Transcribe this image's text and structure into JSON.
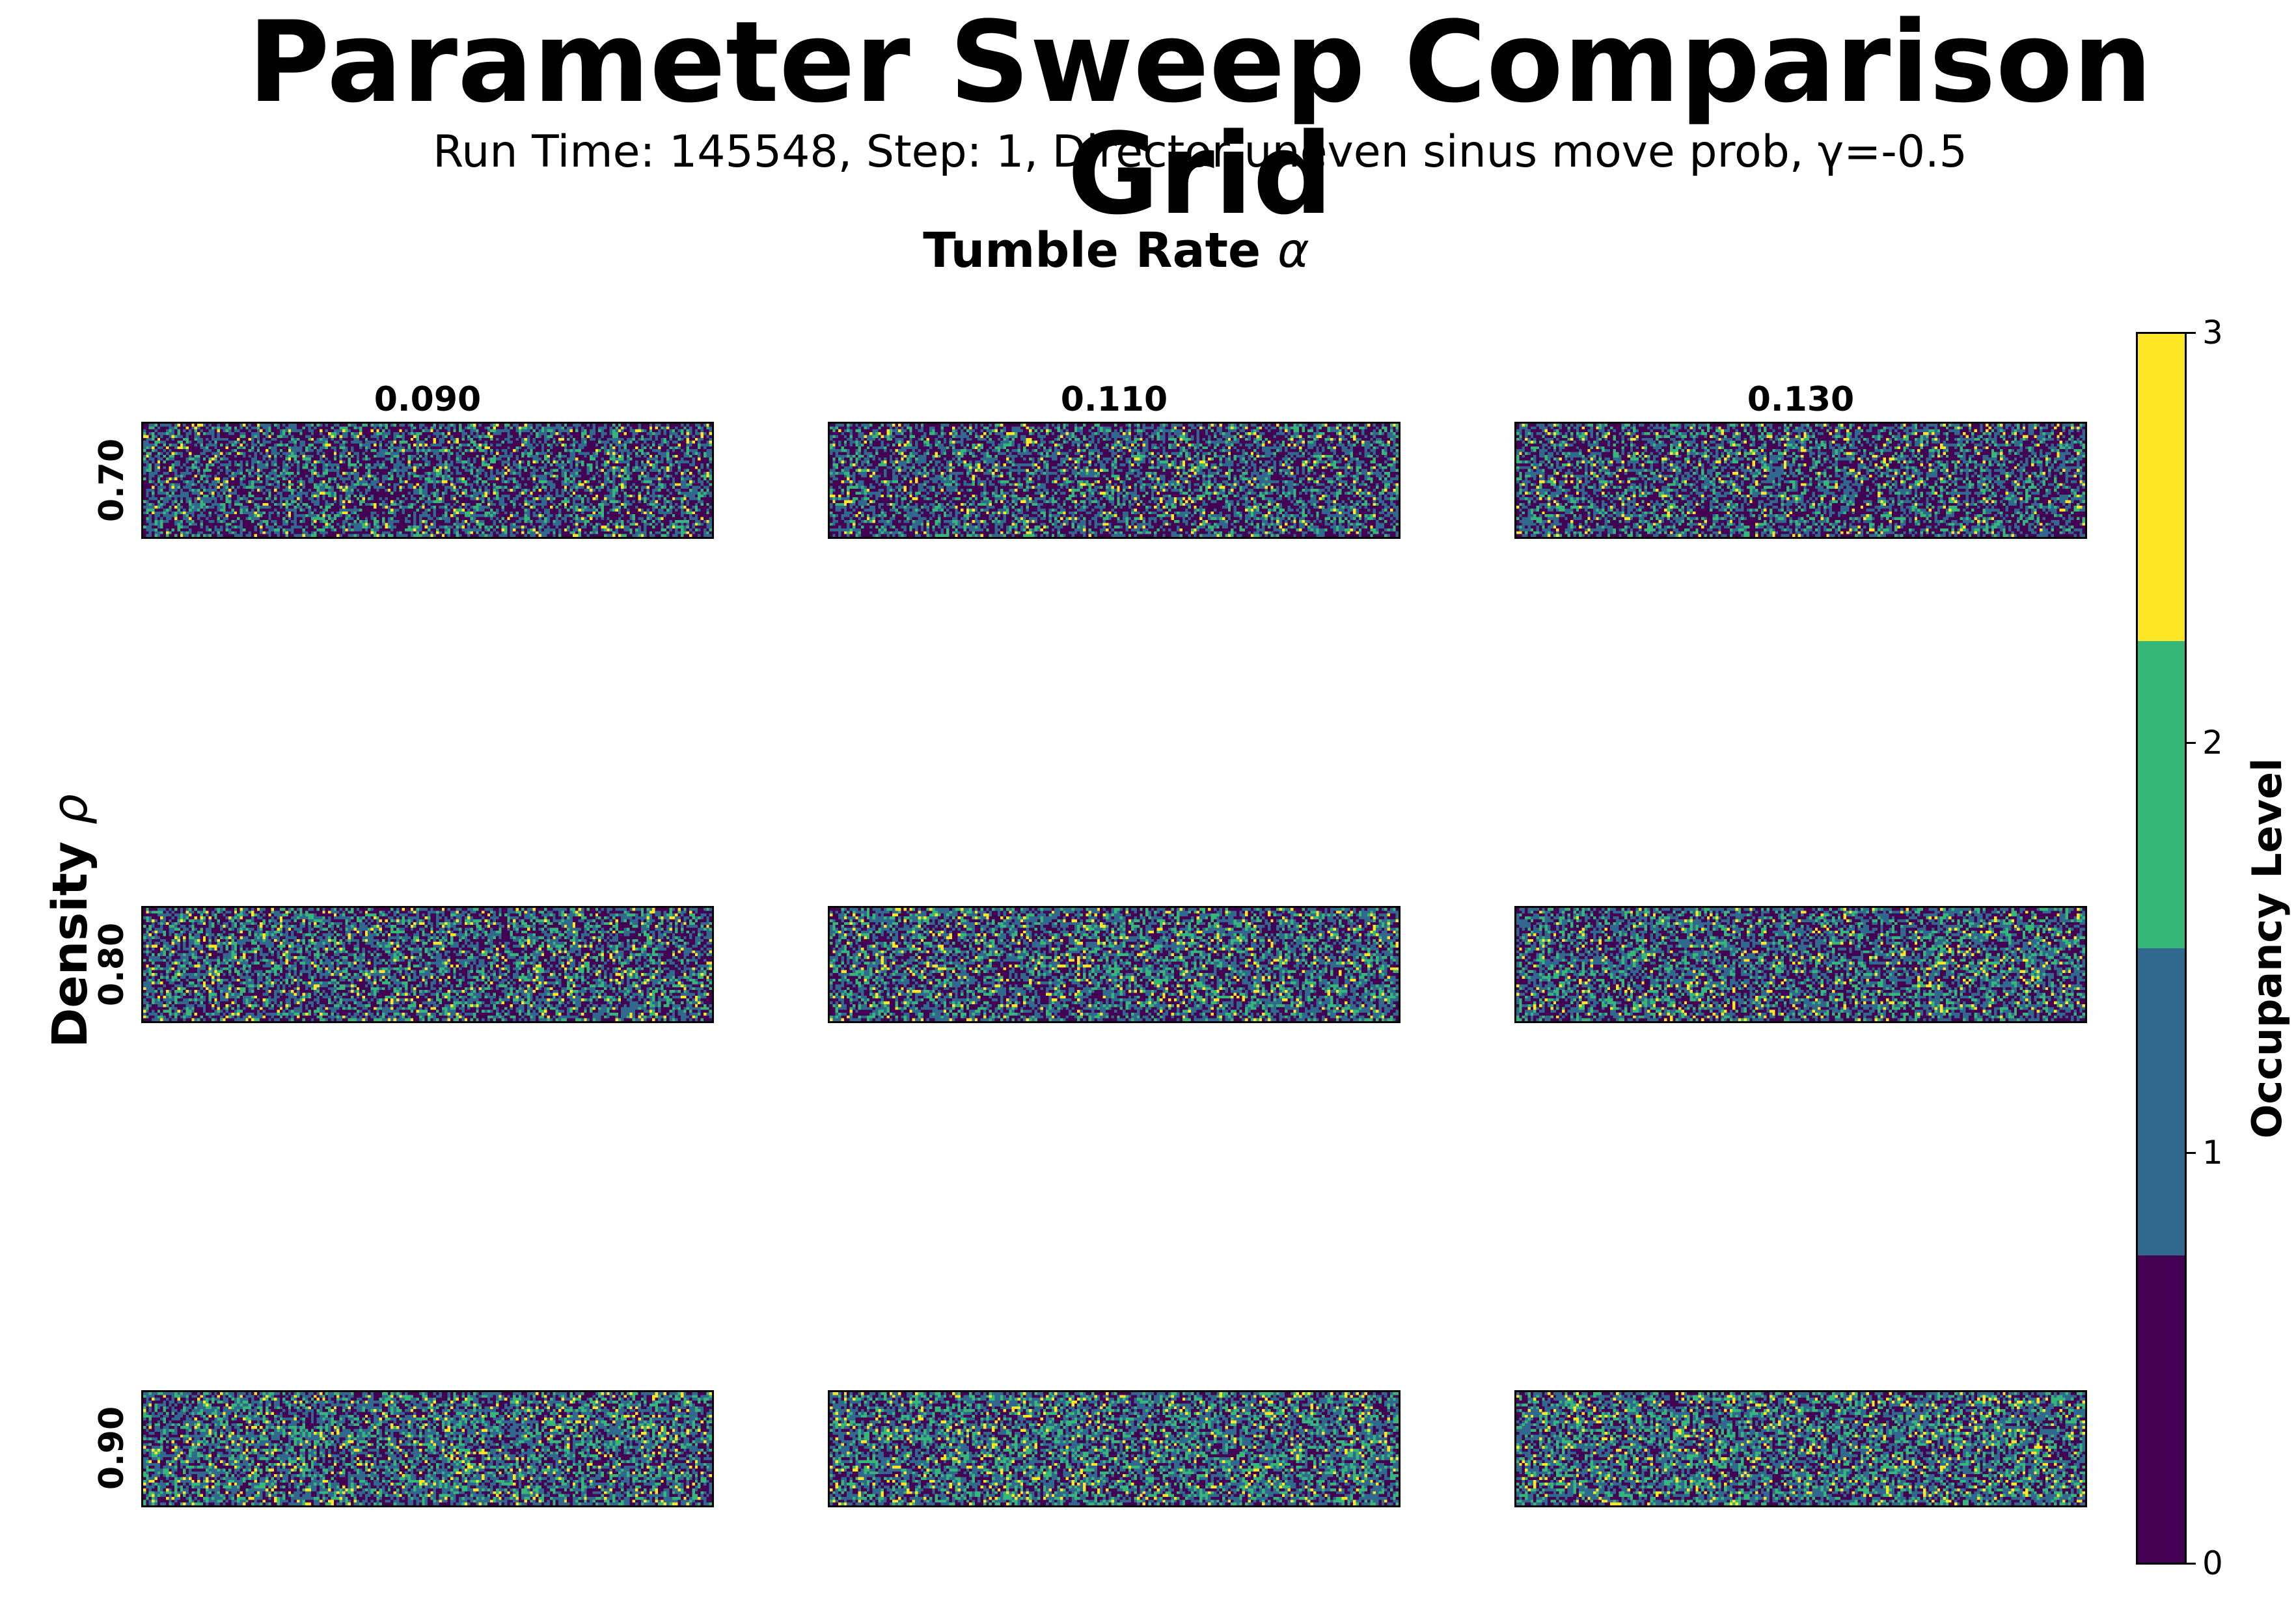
{
  "title": "Parameter Sweep Comparison Grid",
  "subtitle": "Run Time: 145548, Step: 1, Director uneven sinus move prob, γ=-0.5",
  "col_axis": {
    "label": "Tumble Rate",
    "symbol": "α"
  },
  "row_axis": {
    "label": "Density",
    "symbol": "ρ"
  },
  "colorbar": {
    "label": "Occupancy Level",
    "ticks": [
      "0",
      "1",
      "2",
      "3"
    ],
    "colors": [
      "#440154",
      "#31688e",
      "#35b779",
      "#fde725"
    ]
  },
  "chart_data": {
    "type": "heatmap",
    "title": "Parameter Sweep Comparison Grid",
    "subtitle": "Run Time: 145548, Step: 1, Director uneven sinus move prob, γ=-0.5",
    "columns": [
      "0.090",
      "0.110",
      "0.130"
    ],
    "rows": [
      "0.70",
      "0.80",
      "0.90"
    ],
    "xlabel": "Tumble Rate α",
    "ylabel": "Density ρ",
    "value_range": [
      0,
      3
    ],
    "levels": [
      0,
      1,
      2,
      3
    ],
    "colormap": "viridis",
    "panel_grid_size": [
      200,
      40
    ],
    "panels": [
      {
        "row": "0.70",
        "col": "0.090",
        "level_fractions": [
          0.47,
          0.33,
          0.15,
          0.05
        ]
      },
      {
        "row": "0.70",
        "col": "0.110",
        "level_fractions": [
          0.47,
          0.33,
          0.15,
          0.05
        ]
      },
      {
        "row": "0.70",
        "col": "0.130",
        "level_fractions": [
          0.47,
          0.33,
          0.15,
          0.05
        ]
      },
      {
        "row": "0.80",
        "col": "0.090",
        "level_fractions": [
          0.4,
          0.36,
          0.18,
          0.06
        ]
      },
      {
        "row": "0.80",
        "col": "0.110",
        "level_fractions": [
          0.4,
          0.36,
          0.18,
          0.06
        ]
      },
      {
        "row": "0.80",
        "col": "0.130",
        "level_fractions": [
          0.4,
          0.36,
          0.18,
          0.06
        ]
      },
      {
        "row": "0.90",
        "col": "0.090",
        "level_fractions": [
          0.34,
          0.38,
          0.21,
          0.07
        ]
      },
      {
        "row": "0.90",
        "col": "0.110",
        "level_fractions": [
          0.34,
          0.38,
          0.21,
          0.07
        ]
      },
      {
        "row": "0.90",
        "col": "0.130",
        "level_fractions": [
          0.34,
          0.38,
          0.21,
          0.07
        ]
      }
    ]
  }
}
